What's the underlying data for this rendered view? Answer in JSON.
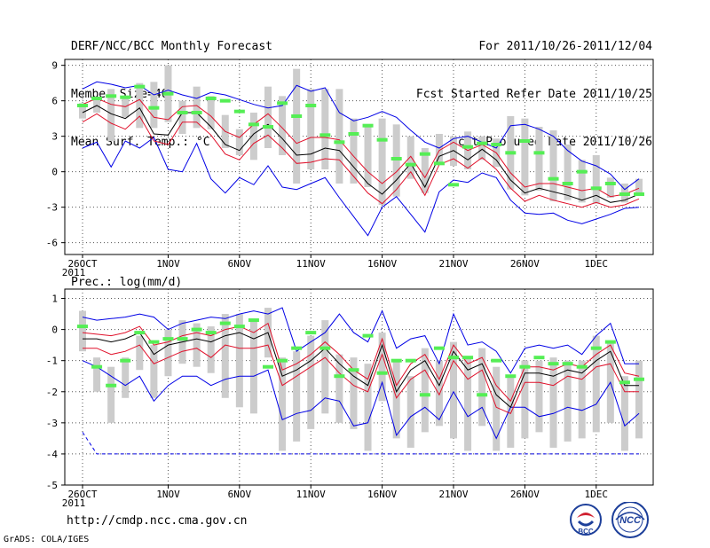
{
  "header": {
    "title": "DERF/NCC/BCC Monthly Forecast",
    "member_size": "Member Size=40",
    "variable": "Mean Surf. Temp.: °C",
    "period": "For 2011/10/26-2011/12/04",
    "fcst_started": "Fcst Started Refer Date 2011/10/25",
    "fcst_produced": "Fcst Produced Date 2011/10/26"
  },
  "footer": {
    "url": "http://cmdp.ncc.cma.gov.cn",
    "credit": "GrADS: COLA/IGES",
    "logo_left_text": "BCC",
    "logo_right_text": "NCC"
  },
  "colors": {
    "median": "#000000",
    "inner_band": "#e0102a",
    "outer_band": "#0000e6",
    "box": "#cccccc",
    "obs_marker": "#55ee55",
    "grid": "#555555"
  },
  "chart_data": [
    {
      "type": "line",
      "title": "Mean Surf. Temp.: °C",
      "ylabel": "°C",
      "ylim": [
        -7,
        9.5
      ],
      "yticks": [
        -6,
        -3,
        0,
        3,
        6,
        9
      ],
      "xlabels": [
        "26OCT",
        "1NOV",
        "6NOV",
        "11NOV",
        "16NOV",
        "21NOV",
        "26NOV",
        "1DEC"
      ],
      "xlabel_day": [
        1,
        7,
        12,
        17,
        22,
        27,
        32,
        37
      ],
      "year_label": "2011",
      "days": 40,
      "series": [
        {
          "name": "max",
          "values": [
            7,
            7.6,
            7.4,
            7.1,
            7.3,
            6.5,
            6.9,
            6.5,
            6.2,
            6.7,
            6.5,
            6.1,
            5.7,
            5.4,
            5.6,
            7.3,
            6.8,
            7.1,
            5.0,
            4.3,
            4.6,
            5.1,
            4.6,
            3.5,
            2.5,
            2.0,
            2.8,
            3.0,
            2.5,
            2.0,
            3.9,
            4.0,
            3.6,
            3.0,
            1.8,
            0.9,
            0.5,
            -0.2,
            -1.5,
            -0.6
          ]
        },
        {
          "name": "upper",
          "values": [
            5.7,
            6.2,
            5.7,
            5.5,
            6.1,
            4.6,
            4.4,
            5.5,
            5.6,
            4.7,
            3.4,
            2.9,
            4.0,
            4.9,
            3.7,
            2.4,
            2.9,
            2.9,
            2.7,
            1.3,
            0,
            -1.0,
            0,
            1.3,
            -0.5,
            1.8,
            2.5,
            1.8,
            2.3,
            1.6,
            -0.1,
            -1.3,
            -1.0,
            -1.0,
            -1.3,
            -1.6,
            -1.4,
            -2.1,
            -1.9,
            -1.4
          ]
        },
        {
          "name": "median",
          "values": [
            5.0,
            5.6,
            4.9,
            4.5,
            5.4,
            3.2,
            3.1,
            5.0,
            5.0,
            3.8,
            2.3,
            1.8,
            3.2,
            4.0,
            2.8,
            1.4,
            1.5,
            2.0,
            1.8,
            0.4,
            -1.0,
            -1.9,
            -0.7,
            0.7,
            -1.3,
            1.3,
            1.8,
            1.0,
            1.9,
            1.0,
            -0.7,
            -1.8,
            -1.4,
            -1.7,
            -2.0,
            -2.4,
            -2.0,
            -2.6,
            -2.4,
            -1.9
          ]
        },
        {
          "name": "lower",
          "values": [
            4.2,
            4.9,
            4.1,
            3.6,
            4.7,
            2.6,
            2.3,
            4.2,
            4.2,
            3.1,
            1.5,
            1.0,
            2.4,
            3.1,
            2.0,
            0.7,
            0.8,
            1.1,
            1.0,
            -0.4,
            -1.8,
            -2.7,
            -1.5,
            0,
            -2.0,
            0.6,
            1.1,
            0.3,
            1.2,
            0.2,
            -1.4,
            -2.5,
            -2.0,
            -2.4,
            -2.7,
            -3.0,
            -2.6,
            -3.0,
            -2.8,
            -2.3
          ]
        },
        {
          "name": "min",
          "values": [
            2.0,
            2.5,
            0.4,
            2.6,
            2.0,
            2.9,
            0.2,
            0,
            2.4,
            -0.6,
            -1.8,
            -0.5,
            -1.1,
            0.5,
            -1.3,
            -1.5,
            -1.0,
            -0.5,
            -2.2,
            -3.8,
            -5.4,
            -3.0,
            -2.1,
            -3.6,
            -5.1,
            -1.7,
            -0.7,
            -0.9,
            -0.1,
            -0.5,
            -2.4,
            -3.5,
            -3.6,
            -3.5,
            -4.1,
            -4.4,
            -4.0,
            -3.6,
            -3.1,
            -3.0
          ]
        },
        {
          "name": "box_top",
          "values": [
            5.8,
            6.3,
            7.0,
            6.2,
            7.5,
            7.6,
            9.0,
            6.0,
            7.2,
            6.4,
            4.8,
            3.6,
            5.0,
            7.2,
            6.4,
            8.7,
            7.0,
            7.0,
            7.0,
            4.5,
            4.0,
            4.5,
            4.0,
            3.0,
            2.0,
            3.2,
            3.0,
            3.4,
            3.0,
            2.8,
            4.7,
            4.5,
            3.8,
            3.5,
            2.3,
            1.0,
            1.4,
            -0.5,
            -1.0,
            -0.6
          ]
        },
        {
          "name": "box_bottom",
          "values": [
            4.5,
            5.0,
            2.6,
            4.6,
            3.7,
            3.7,
            4.2,
            3.2,
            3.7,
            3.6,
            2.0,
            1.4,
            1.0,
            2.0,
            1.4,
            -1.0,
            0.2,
            0.2,
            -1.0,
            -1.0,
            -1.3,
            -2.8,
            -2.1,
            -0.6,
            -1.8,
            0.7,
            0.5,
            0.2,
            1.0,
            0.4,
            -1.5,
            -2.0,
            -1.6,
            -2.5,
            -2.4,
            -2.6,
            -2.7,
            -2.2,
            -2.6,
            -1.8
          ]
        },
        {
          "name": "observed",
          "values": [
            5.6,
            6.2,
            6.4,
            6.3,
            7.2,
            5.4,
            6.6,
            5.0,
            5.0,
            6.2,
            6.0,
            5.1,
            4.0,
            3.8,
            5.8,
            4.7,
            5.6,
            3.1,
            2.5,
            3.2,
            3.9,
            2.7,
            1.1,
            0.6,
            1.5,
            0.7,
            -1.1,
            2.1,
            2.4,
            2.3,
            1.6,
            2.6,
            1.6,
            -0.6,
            -1.0,
            0,
            -1.4,
            -1.0,
            -1.9,
            -1.9
          ]
        }
      ]
    },
    {
      "type": "line",
      "title": "Prec.: log(mm/d)",
      "ylabel": "log(mm/d)",
      "ylim": [
        -5,
        1.3
      ],
      "yticks": [
        -5,
        -4,
        -3,
        -2,
        -1,
        0,
        1
      ],
      "xlabels": [
        "26OCT",
        "1NOV",
        "6NOV",
        "11NOV",
        "16NOV",
        "21NOV",
        "26NOV",
        "1DEC"
      ],
      "xlabel_day": [
        1,
        7,
        12,
        17,
        22,
        27,
        32,
        37
      ],
      "year_label": "2011",
      "days": 40,
      "series": [
        {
          "name": "max",
          "values": [
            0.4,
            0.3,
            0.35,
            0.4,
            0.5,
            0.4,
            0.0,
            0.2,
            0.3,
            0.4,
            0.35,
            0.5,
            0.6,
            0.5,
            0.7,
            -0.7,
            -0.4,
            -0.1,
            0.5,
            -0.1,
            -0.4,
            0.6,
            -0.6,
            -0.3,
            -0.2,
            -1.1,
            0.5,
            -0.5,
            -0.4,
            -0.7,
            -1.4,
            -0.6,
            -0.5,
            -0.6,
            -0.5,
            -0.8,
            -0.2,
            0.2,
            -1.1,
            -1.1
          ]
        },
        {
          "name": "upper",
          "values": [
            -0.1,
            -0.15,
            -0.2,
            -0.1,
            0.1,
            -0.5,
            -0.4,
            -0.2,
            -0.1,
            -0.2,
            0.0,
            0.1,
            -0.1,
            0.2,
            -1.3,
            -1.1,
            -0.8,
            -0.4,
            -0.8,
            -1.3,
            -1.6,
            -0.3,
            -1.8,
            -1.1,
            -0.8,
            -1.6,
            -0.5,
            -1.1,
            -0.9,
            -1.8,
            -2.3,
            -1.2,
            -1.2,
            -1.3,
            -1.1,
            -1.2,
            -0.8,
            -0.5,
            -1.4,
            -1.5
          ]
        },
        {
          "name": "median",
          "values": [
            -0.3,
            -0.3,
            -0.4,
            -0.3,
            -0.1,
            -0.8,
            -0.5,
            -0.4,
            -0.3,
            -0.4,
            -0.2,
            -0.1,
            -0.3,
            -0.1,
            -1.5,
            -1.3,
            -1.0,
            -0.6,
            -1.1,
            -1.5,
            -1.8,
            -0.5,
            -2.0,
            -1.3,
            -1.0,
            -1.8,
            -0.7,
            -1.3,
            -1.1,
            -2.1,
            -2.5,
            -1.4,
            -1.4,
            -1.5,
            -1.3,
            -1.4,
            -1.0,
            -0.7,
            -1.8,
            -1.8
          ]
        },
        {
          "name": "lower",
          "values": [
            -0.6,
            -0.6,
            -0.8,
            -0.7,
            -0.5,
            -1.1,
            -0.9,
            -0.7,
            -0.6,
            -0.9,
            -0.5,
            -0.6,
            -0.6,
            -0.5,
            -1.8,
            -1.5,
            -1.2,
            -0.9,
            -1.4,
            -1.8,
            -2.0,
            -0.8,
            -2.2,
            -1.6,
            -1.3,
            -2.1,
            -1.0,
            -1.6,
            -1.3,
            -2.5,
            -2.7,
            -1.7,
            -1.7,
            -1.8,
            -1.5,
            -1.6,
            -1.2,
            -1.1,
            -2.0,
            -2.0
          ]
        },
        {
          "name": "min",
          "values": [
            -1.0,
            -1.2,
            -1.5,
            -1.8,
            -1.5,
            -2.3,
            -1.8,
            -1.5,
            -1.5,
            -1.8,
            -1.6,
            -1.5,
            -1.5,
            -1.3,
            -2.9,
            -2.7,
            -2.6,
            -2.2,
            -2.3,
            -3.1,
            -3.0,
            -1.7,
            -3.4,
            -2.8,
            -2.5,
            -2.9,
            -2.0,
            -2.8,
            -2.5,
            -3.5,
            -2.5,
            -2.5,
            -2.8,
            -2.7,
            -2.5,
            -2.6,
            -2.4,
            -1.7,
            -3.1,
            -2.7
          ]
        },
        {
          "name": "floor",
          "values": [
            -3.3,
            -4.0,
            -4.0,
            -4.0,
            -4.0,
            -4.0,
            -4.0,
            -4.0,
            -4.0,
            -4.0,
            -4.0,
            -4.0,
            -4.0,
            -4.0,
            -4.0,
            -4.0,
            -4.0,
            -4.0,
            -4.0,
            -4.0,
            -4.0,
            -4.0,
            -4.0,
            -4.0,
            -4.0,
            -4.0,
            -4.0,
            -4.0,
            -4.0,
            -4.0,
            -4.0,
            -4.0,
            -4.0,
            -4.0,
            -4.0,
            -4.0,
            -4.0,
            -4.0,
            -4.0,
            -4.0
          ]
        },
        {
          "name": "box_top",
          "values": [
            0.6,
            -0.9,
            -1.2,
            -0.9,
            -0.2,
            -0.5,
            0.0,
            0.3,
            0.2,
            0.1,
            0.5,
            0.5,
            0.3,
            0.7,
            -0.9,
            -0.7,
            -0.2,
            0.3,
            -0.8,
            -0.9,
            -1.1,
            -0.1,
            -1.0,
            -1.5,
            -0.6,
            -1.0,
            -0.4,
            -0.9,
            -0.6,
            -1.2,
            -1.5,
            -1.0,
            -1.0,
            -0.9,
            -1.0,
            -1.0,
            -0.2,
            -0.4,
            -1.5,
            -1.0
          ]
        },
        {
          "name": "box_bottom",
          "values": [
            -0.7,
            -2.0,
            -3.0,
            -2.2,
            -1.3,
            -2.2,
            -1.5,
            -1.1,
            -1.2,
            -1.4,
            -2.2,
            -2.5,
            -2.7,
            -0.9,
            -3.9,
            -3.6,
            -3.2,
            -2.7,
            -3.0,
            -3.2,
            -3.9,
            -2.3,
            -3.5,
            -3.8,
            -3.3,
            -3.1,
            -3.5,
            -3.9,
            -3.1,
            -3.9,
            -3.8,
            -3.5,
            -3.3,
            -3.8,
            -3.6,
            -3.5,
            -3.3,
            -3.0,
            -3.9,
            -3.5
          ]
        },
        {
          "name": "observed",
          "values": [
            0.1,
            -1.2,
            -1.8,
            -1.0,
            -0.1,
            -0.4,
            -0.3,
            -0.3,
            0.0,
            -0.1,
            0.2,
            0.1,
            0.3,
            -1.2,
            -1.0,
            -0.6,
            -0.1,
            -0.6,
            -1.5,
            -1.3,
            -0.2,
            -1.4,
            -1.0,
            -1.0,
            -2.1,
            -0.6,
            -0.9,
            -0.9,
            -2.1,
            -1.0,
            -1.5,
            -1.2,
            -0.9,
            -1.1,
            -1.1,
            -1.2,
            -0.6,
            -0.4,
            -1.7,
            -1.6
          ]
        }
      ]
    }
  ]
}
